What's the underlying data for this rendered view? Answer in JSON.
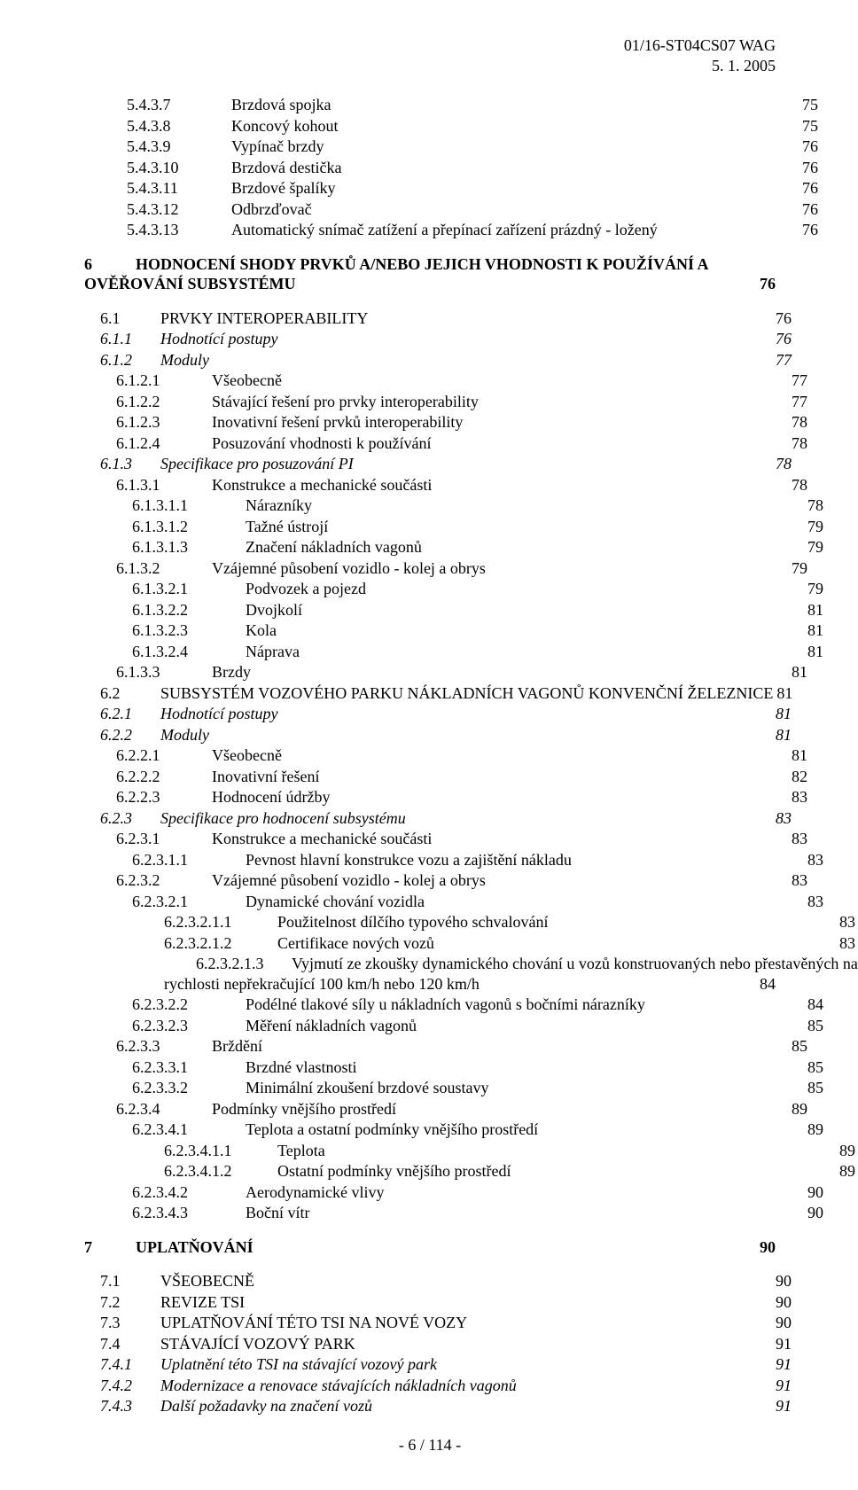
{
  "header": {
    "line1": "01/16-ST04CS07 WAG",
    "line2": "5. 1. 2005"
  },
  "footer": "- 6 / 114 -",
  "toc": [
    {
      "num": "5.4.3.7",
      "title": "Brzdová spojka",
      "page": "75",
      "indent": 1
    },
    {
      "num": "5.4.3.8",
      "title": "Koncový kohout",
      "page": "75",
      "indent": 1
    },
    {
      "num": "5.4.3.9",
      "title": "Vypínač brzdy",
      "page": "76",
      "indent": 1
    },
    {
      "num": "5.4.3.10",
      "title": "Brzdová destička",
      "page": "76",
      "indent": 1
    },
    {
      "num": "5.4.3.11",
      "title": "Brzdové špalíky",
      "page": "76",
      "indent": 1
    },
    {
      "num": "5.4.3.12",
      "title": "Odbrzďovač",
      "page": "76",
      "indent": 1
    },
    {
      "num": "5.4.3.13",
      "title": "Automatický snímač zatížení a přepínací zařízení prázdný - ložený",
      "page": "76",
      "indent": 1
    },
    {
      "num": "6",
      "title_a": "HODNOCENÍ SHODY PRVKŮ A/NEBO JEJICH VHODNOSTI K POUŽÍVÁNÍ A",
      "title_b": "OVĚŘOVÁNÍ SUBSYSTÉMU",
      "page": "76",
      "indent": 0,
      "bold": true,
      "twoLineHeading": true,
      "gap": true
    },
    {
      "num": "6.1",
      "title": "PRVKY INTEROPERABILITY",
      "page": "76",
      "indent": 2,
      "smallcaps": true,
      "gap": true
    },
    {
      "num": "6.1.1",
      "title": "Hodnotící postupy",
      "page": "76",
      "indent": 2,
      "italic": true
    },
    {
      "num": "6.1.2",
      "title": "Moduly",
      "page": "77",
      "indent": 2,
      "italic": true
    },
    {
      "num": "6.1.2.1",
      "title": "Všeobecně",
      "page": "77",
      "indent": 3
    },
    {
      "num": "6.1.2.2",
      "title": "Stávající řešení pro prvky interoperability",
      "page": "77",
      "indent": 3
    },
    {
      "num": "6.1.2.3",
      "title": "Inovativní řešení prvků interoperability",
      "page": "78",
      "indent": 3
    },
    {
      "num": "6.1.2.4",
      "title": "Posuzování vhodnosti k používání",
      "page": "78",
      "indent": 3
    },
    {
      "num": "6.1.3",
      "title": "Specifikace pro posuzování PI",
      "page": "78",
      "indent": 2,
      "italic": true
    },
    {
      "num": "6.1.3.1",
      "title": "Konstrukce a mechanické součásti",
      "page": "78",
      "indent": 3
    },
    {
      "num": "6.1.3.1.1",
      "title": "Nárazníky",
      "page": "78",
      "indent": 4
    },
    {
      "num": "6.1.3.1.2",
      "title": "Tažné ústrojí",
      "page": "79",
      "indent": 4
    },
    {
      "num": "6.1.3.1.3",
      "title": "Značení nákladních vagonů",
      "page": "79",
      "indent": 4
    },
    {
      "num": "6.1.3.2",
      "title": "Vzájemné působení vozidlo - kolej a obrys",
      "page": "79",
      "indent": 3
    },
    {
      "num": "6.1.3.2.1",
      "title": "Podvozek a pojezd",
      "page": "79",
      "indent": 4
    },
    {
      "num": "6.1.3.2.2",
      "title": "Dvojkolí",
      "page": "81",
      "indent": 4
    },
    {
      "num": "6.1.3.2.3",
      "title": "Kola",
      "page": "81",
      "indent": 4
    },
    {
      "num": "6.1.3.2.4",
      "title": "Náprava",
      "page": "81",
      "indent": 4
    },
    {
      "num": "6.1.3.3",
      "title": "Brzdy",
      "page": "81",
      "indent": 3
    },
    {
      "num": "6.2",
      "title": "SUBSYSTÉM VOZOVÉHO PARKU NÁKLADNÍCH VAGONŮ KONVENČNÍ ŽELEZNICE",
      "page": "81",
      "indent": 2,
      "smallcaps": true
    },
    {
      "num": "6.2.1",
      "title": "Hodnotící postupy",
      "page": "81",
      "indent": 2,
      "italic": true
    },
    {
      "num": "6.2.2",
      "title": "Moduly",
      "page": "81",
      "indent": 2,
      "italic": true
    },
    {
      "num": "6.2.2.1",
      "title": "Všeobecně",
      "page": "81",
      "indent": 3
    },
    {
      "num": "6.2.2.2",
      "title": "Inovativní řešení",
      "page": "82",
      "indent": 3
    },
    {
      "num": "6.2.2.3",
      "title": "Hodnocení údržby",
      "page": "83",
      "indent": 3
    },
    {
      "num": "6.2.3",
      "title": "Specifikace pro hodnocení subsystému",
      "page": "83",
      "indent": 2,
      "italic": true
    },
    {
      "num": "6.2.3.1",
      "title": "Konstrukce a mechanické součásti",
      "page": "83",
      "indent": 3
    },
    {
      "num": "6.2.3.1.1",
      "title": "Pevnost hlavní konstrukce vozu a zajištění nákladu",
      "page": "83",
      "indent": 4
    },
    {
      "num": "6.2.3.2",
      "title": "Vzájemné působení vozidlo - kolej a obrys",
      "page": "83",
      "indent": 3
    },
    {
      "num": "6.2.3.2.1",
      "title": "Dynamické chování vozidla",
      "page": "83",
      "indent": 4
    },
    {
      "num": "6.2.3.2.1.1",
      "title": "Použitelnost dílčího typového schvalování",
      "page": "83",
      "indent": 5
    },
    {
      "num": "6.2.3.2.1.2",
      "title": "Certifikace nových vozů",
      "page": "83",
      "indent": 5
    },
    {
      "num": "6.2.3.2.1.3",
      "title_a": "Vyjmutí ze zkoušky dynamického chování u vozů konstruovaných nebo přestavěných na",
      "title_b": "rychlosti nepřekračující 100 km/h nebo 120 km/h",
      "page": "84",
      "indent": 5,
      "twoLine": true
    },
    {
      "num": "6.2.3.2.2",
      "title": "Podélné tlakové síly u nákladních vagonů s bočními nárazníky",
      "page": "84",
      "indent": 4
    },
    {
      "num": "6.2.3.2.3",
      "title": "Měření nákladních vagonů",
      "page": "85",
      "indent": 4
    },
    {
      "num": "6.2.3.3",
      "title": "Brždění",
      "page": "85",
      "indent": 3
    },
    {
      "num": "6.2.3.3.1",
      "title": "Brzdné vlastnosti",
      "page": "85",
      "indent": 4
    },
    {
      "num": "6.2.3.3.2",
      "title": "Minimální zkoušení brzdové soustavy",
      "page": "85",
      "indent": 4
    },
    {
      "num": "6.2.3.4",
      "title": "Podmínky vnějšího prostředí",
      "page": "89",
      "indent": 3
    },
    {
      "num": "6.2.3.4.1",
      "title": "Teplota a ostatní podmínky vnějšího prostředí",
      "page": "89",
      "indent": 4
    },
    {
      "num": "6.2.3.4.1.1",
      "title": "Teplota",
      "page": "89",
      "indent": 5
    },
    {
      "num": "6.2.3.4.1.2",
      "title": "Ostatní podmínky vnějšího prostředí",
      "page": "89",
      "indent": 5
    },
    {
      "num": "6.2.3.4.2",
      "title": "Aerodynamické vlivy",
      "page": "90",
      "indent": 4
    },
    {
      "num": "6.2.3.4.3",
      "title": "Boční vítr",
      "page": "90",
      "indent": 4
    },
    {
      "num": "7",
      "title": "UPLATŇOVÁNÍ",
      "page": "90",
      "indent": 0,
      "bold": true,
      "gap": true
    },
    {
      "num": "7.1",
      "title": "VŠEOBECNĚ",
      "page": "90",
      "indent": 2,
      "smallcaps": true,
      "gap": true
    },
    {
      "num": "7.2",
      "title": "REVIZE TSI",
      "page": "90",
      "indent": 2,
      "smallcaps": true
    },
    {
      "num": "7.3",
      "title": "UPLATŇOVÁNÍ TÉTO TSI NA NOVÉ VOZY",
      "page": "90",
      "indent": 2,
      "smallcaps": true
    },
    {
      "num": "7.4",
      "title": "STÁVAJÍCÍ VOZOVÝ PARK",
      "page": "91",
      "indent": 2,
      "smallcaps": true
    },
    {
      "num": "7.4.1",
      "title": "Uplatnění této TSI na stávající vozový park",
      "page": "91",
      "indent": 2,
      "italic": true
    },
    {
      "num": "7.4.2",
      "title": "Modernizace a renovace stávajících nákladních vagonů",
      "page": "91",
      "indent": 2,
      "italic": true
    },
    {
      "num": "7.4.3",
      "title": "Další požadavky na značení vozů",
      "page": "91",
      "indent": 2,
      "italic": true
    }
  ]
}
